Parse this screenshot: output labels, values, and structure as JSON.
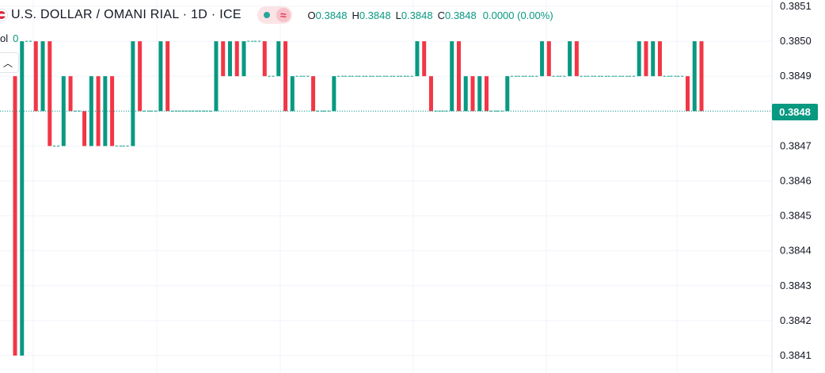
{
  "header": {
    "symbol_title": "U.S. DOLLAR / OMANI RIAL · 1D · ICE",
    "ohlc": {
      "o_label": "O",
      "o_value": "0.3848",
      "h_label": "H",
      "h_value": "0.3848",
      "l_label": "L",
      "l_value": "0.3848",
      "c_label": "C",
      "c_value": "0.3848",
      "change": "0.0000 (0.00%)"
    },
    "market_status_icon": "green-dot",
    "indicator_icon": "wave-approx-icon"
  },
  "volume": {
    "label": "ol",
    "value": "0"
  },
  "price_axis": {
    "ticks": [
      "0.3851",
      "0.3850",
      "0.3849",
      "0.3847",
      "0.3846",
      "0.3845",
      "0.3844",
      "0.3843",
      "0.3842",
      "0.3841"
    ]
  },
  "last_price": {
    "label": "0.3848",
    "value": 0.3848
  },
  "colors": {
    "up": "#089981",
    "down": "#f23645",
    "last_price": "#089981",
    "grid": "#f0f3fa"
  },
  "chart_data": {
    "type": "bar",
    "style": "candlestick",
    "title": "U.S. DOLLAR / OMANI RIAL · 1D · ICE",
    "ylim": [
      0.38405,
      0.38512
    ],
    "grid": true,
    "candles": [
      {
        "o": 0.3849,
        "c": 0.3841
      },
      {
        "o": 0.3841,
        "c": 0.385
      },
      {
        "o": 0.385,
        "c": 0.385
      },
      {
        "o": 0.385,
        "c": 0.3848
      },
      {
        "o": 0.3848,
        "c": 0.385
      },
      {
        "o": 0.385,
        "c": 0.3847
      },
      {
        "o": 0.3847,
        "c": 0.3847
      },
      {
        "o": 0.3847,
        "c": 0.3849
      },
      {
        "o": 0.3849,
        "c": 0.3848
      },
      {
        "o": 0.3848,
        "c": 0.3848
      },
      {
        "o": 0.3848,
        "c": 0.3847
      },
      {
        "o": 0.3847,
        "c": 0.3849
      },
      {
        "o": 0.3849,
        "c": 0.3847
      },
      {
        "o": 0.3847,
        "c": 0.3849
      },
      {
        "o": 0.3849,
        "c": 0.3847
      },
      {
        "o": 0.3847,
        "c": 0.3847
      },
      {
        "o": 0.3847,
        "c": 0.3847
      },
      {
        "o": 0.3847,
        "c": 0.385
      },
      {
        "o": 0.385,
        "c": 0.3848
      },
      {
        "o": 0.3848,
        "c": 0.3848
      },
      {
        "o": 0.3848,
        "c": 0.3848
      },
      {
        "o": 0.3848,
        "c": 0.385
      },
      {
        "o": 0.385,
        "c": 0.3848
      },
      {
        "o": 0.3848,
        "c": 0.3848
      },
      {
        "o": 0.3848,
        "c": 0.3848
      },
      {
        "o": 0.3848,
        "c": 0.3848
      },
      {
        "o": 0.3848,
        "c": 0.3848
      },
      {
        "o": 0.3848,
        "c": 0.3848
      },
      {
        "o": 0.3848,
        "c": 0.3848
      },
      {
        "o": 0.3848,
        "c": 0.385
      },
      {
        "o": 0.385,
        "c": 0.3849
      },
      {
        "o": 0.3849,
        "c": 0.385
      },
      {
        "o": 0.385,
        "c": 0.3849
      },
      {
        "o": 0.3849,
        "c": 0.385
      },
      {
        "o": 0.385,
        "c": 0.385
      },
      {
        "o": 0.385,
        "c": 0.385
      },
      {
        "o": 0.385,
        "c": 0.3849
      },
      {
        "o": 0.3849,
        "c": 0.3849
      },
      {
        "o": 0.3849,
        "c": 0.385
      },
      {
        "o": 0.385,
        "c": 0.3848
      },
      {
        "o": 0.3848,
        "c": 0.3849
      },
      {
        "o": 0.3849,
        "c": 0.3849
      },
      {
        "o": 0.3849,
        "c": 0.3849
      },
      {
        "o": 0.3849,
        "c": 0.3848
      },
      {
        "o": 0.3848,
        "c": 0.3848
      },
      {
        "o": 0.3848,
        "c": 0.3848
      },
      {
        "o": 0.3848,
        "c": 0.3849
      },
      {
        "o": 0.3849,
        "c": 0.3849
      },
      {
        "o": 0.3849,
        "c": 0.3849
      },
      {
        "o": 0.3849,
        "c": 0.3849
      },
      {
        "o": 0.3849,
        "c": 0.3849
      },
      {
        "o": 0.3849,
        "c": 0.3849
      },
      {
        "o": 0.3849,
        "c": 0.3849
      },
      {
        "o": 0.3849,
        "c": 0.3849
      },
      {
        "o": 0.3849,
        "c": 0.3849
      },
      {
        "o": 0.3849,
        "c": 0.3849
      },
      {
        "o": 0.3849,
        "c": 0.3849
      },
      {
        "o": 0.3849,
        "c": 0.3849
      },
      {
        "o": 0.3849,
        "c": 0.385
      },
      {
        "o": 0.385,
        "c": 0.3849
      },
      {
        "o": 0.3849,
        "c": 0.3848
      },
      {
        "o": 0.3848,
        "c": 0.3848
      },
      {
        "o": 0.3848,
        "c": 0.3848
      },
      {
        "o": 0.3848,
        "c": 0.385
      },
      {
        "o": 0.385,
        "c": 0.3848
      },
      {
        "o": 0.3848,
        "c": 0.3849
      },
      {
        "o": 0.3849,
        "c": 0.3848
      },
      {
        "o": 0.3848,
        "c": 0.3849
      },
      {
        "o": 0.3849,
        "c": 0.3848
      },
      {
        "o": 0.3848,
        "c": 0.3848
      },
      {
        "o": 0.3848,
        "c": 0.3848
      },
      {
        "o": 0.3848,
        "c": 0.3849
      },
      {
        "o": 0.3849,
        "c": 0.3849
      },
      {
        "o": 0.3849,
        "c": 0.3849
      },
      {
        "o": 0.3849,
        "c": 0.3849
      },
      {
        "o": 0.3849,
        "c": 0.3849
      },
      {
        "o": 0.3849,
        "c": 0.385
      },
      {
        "o": 0.385,
        "c": 0.3849
      },
      {
        "o": 0.3849,
        "c": 0.3849
      },
      {
        "o": 0.3849,
        "c": 0.3849
      },
      {
        "o": 0.3849,
        "c": 0.385
      },
      {
        "o": 0.385,
        "c": 0.3849
      },
      {
        "o": 0.3849,
        "c": 0.3849
      },
      {
        "o": 0.3849,
        "c": 0.3849
      },
      {
        "o": 0.3849,
        "c": 0.3849
      },
      {
        "o": 0.3849,
        "c": 0.3849
      },
      {
        "o": 0.3849,
        "c": 0.3849
      },
      {
        "o": 0.3849,
        "c": 0.3849
      },
      {
        "o": 0.3849,
        "c": 0.3849
      },
      {
        "o": 0.3849,
        "c": 0.3849
      },
      {
        "o": 0.3849,
        "c": 0.385
      },
      {
        "o": 0.385,
        "c": 0.3849
      },
      {
        "o": 0.3849,
        "c": 0.385
      },
      {
        "o": 0.385,
        "c": 0.3849
      },
      {
        "o": 0.3849,
        "c": 0.3849
      },
      {
        "o": 0.3849,
        "c": 0.3849
      },
      {
        "o": 0.3849,
        "c": 0.3849
      },
      {
        "o": 0.3849,
        "c": 0.3848
      },
      {
        "o": 0.3848,
        "c": 0.385
      },
      {
        "o": 0.385,
        "c": 0.3848
      }
    ]
  }
}
